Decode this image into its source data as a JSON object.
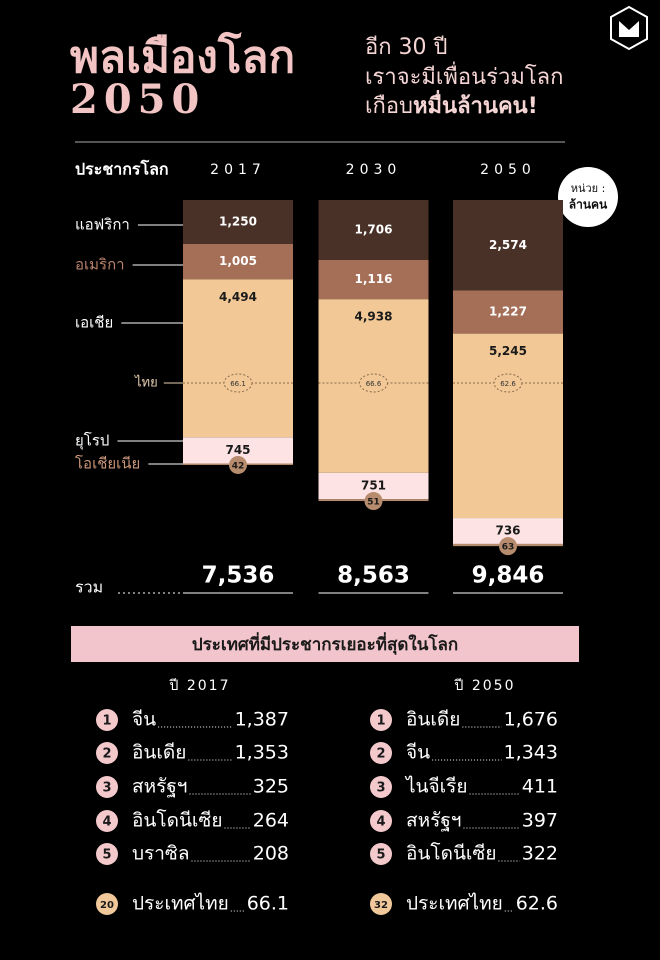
{
  "header": {
    "title": "พลเมืองโลก",
    "year": "2050",
    "tagline_1": "อีก 30 ปี",
    "tagline_2": "เราจะมีเพื่อนร่วมโลก",
    "tagline_3_prefix": "เกือบ",
    "tagline_3_bold": "หมื่นล้านคน!"
  },
  "chart_data": {
    "type": "stacked-bar",
    "title": "ประชากรโลก",
    "unit_label": [
      "หน่วย :",
      "ล้านคน"
    ],
    "categories": [
      "2017",
      "2030",
      "2050"
    ],
    "series": [
      {
        "name": "แอฟริกา",
        "color": "#4a3127",
        "values": [
          1250,
          1706,
          2574
        ],
        "value_labels": [
          "1,250",
          "1,706",
          "2,574"
        ]
      },
      {
        "name": "อเมริกา",
        "color": "#a56f57",
        "values": [
          1005,
          1116,
          1227
        ],
        "value_labels": [
          "1,005",
          "1,116",
          "1,227"
        ]
      },
      {
        "name": "เอเชีย",
        "color": "#f1c896",
        "values": [
          4494,
          4938,
          5245
        ],
        "value_labels": [
          "4,494",
          "4,938",
          "5,245"
        ]
      },
      {
        "name": "ยุโรป",
        "color": "#fde3e3",
        "values": [
          745,
          751,
          736
        ]
      },
      {
        "name": "โอเชียเนีย",
        "color": "#b78b6d",
        "values": [
          42,
          51,
          63
        ]
      }
    ],
    "thailand": {
      "name": "ไทย",
      "values": [
        66.1,
        66.6,
        62.6
      ]
    },
    "total_label": "รวม",
    "totals": [
      7536,
      8563,
      9846
    ],
    "totals_labels": [
      "7,536",
      "8,563",
      "9,846"
    ]
  },
  "ranking": {
    "title": "ประเทศที่มีประชากรเยอะที่สุดในโลก",
    "columns": [
      {
        "year_label": "ปี 2017",
        "items": [
          {
            "rank": 1,
            "name": "จีน",
            "value": "1,387"
          },
          {
            "rank": 2,
            "name": "อินเดีย",
            "value": "1,353"
          },
          {
            "rank": 3,
            "name": "สหรัฐฯ",
            "value": "325"
          },
          {
            "rank": 4,
            "name": "อินโดนีเซีย",
            "value": "264"
          },
          {
            "rank": 5,
            "name": "บราซิล",
            "value": "208"
          }
        ],
        "thai": {
          "rank": 20,
          "name": "ประเทศไทย",
          "value": "66.1"
        }
      },
      {
        "year_label": "ปี 2050",
        "items": [
          {
            "rank": 1,
            "name": "อินเดีย",
            "value": "1,676"
          },
          {
            "rank": 2,
            "name": "จีน",
            "value": "1,343"
          },
          {
            "rank": 3,
            "name": "ไนจีเรีย",
            "value": "411"
          },
          {
            "rank": 4,
            "name": "สหรัฐฯ",
            "value": "397"
          },
          {
            "rank": 5,
            "name": "อินโดนีเซีย",
            "value": "322"
          }
        ],
        "thai": {
          "rank": 32,
          "name": "ประเทศไทย",
          "value": "62.6"
        }
      }
    ]
  }
}
